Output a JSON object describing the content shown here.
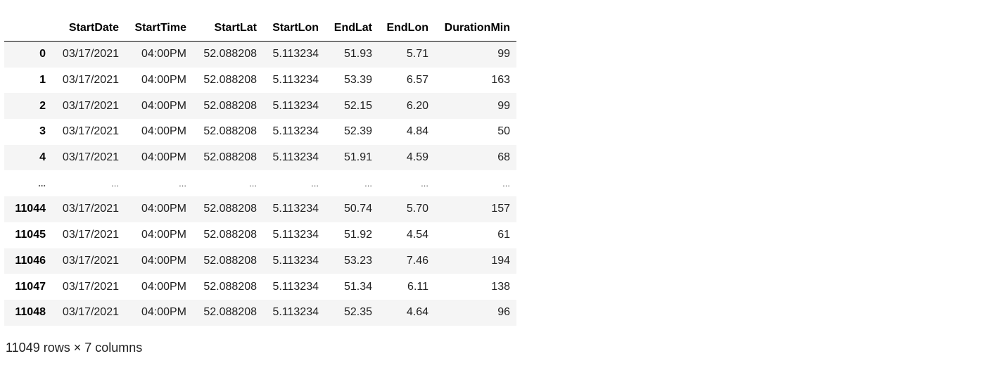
{
  "table": {
    "columns": [
      "",
      "StartDate",
      "StartTime",
      "StartLat",
      "StartLon",
      "EndLat",
      "EndLon",
      "DurationMin"
    ],
    "rows": [
      {
        "index": "0",
        "cells": [
          "03/17/2021",
          "04:00PM",
          "52.088208",
          "5.113234",
          "51.93",
          "5.71",
          "99"
        ]
      },
      {
        "index": "1",
        "cells": [
          "03/17/2021",
          "04:00PM",
          "52.088208",
          "5.113234",
          "53.39",
          "6.57",
          "163"
        ]
      },
      {
        "index": "2",
        "cells": [
          "03/17/2021",
          "04:00PM",
          "52.088208",
          "5.113234",
          "52.15",
          "6.20",
          "99"
        ]
      },
      {
        "index": "3",
        "cells": [
          "03/17/2021",
          "04:00PM",
          "52.088208",
          "5.113234",
          "52.39",
          "4.84",
          "50"
        ]
      },
      {
        "index": "4",
        "cells": [
          "03/17/2021",
          "04:00PM",
          "52.088208",
          "5.113234",
          "51.91",
          "4.59",
          "68"
        ]
      },
      {
        "index": "...",
        "cells": [
          "...",
          "...",
          "...",
          "...",
          "...",
          "...",
          "..."
        ]
      },
      {
        "index": "11044",
        "cells": [
          "03/17/2021",
          "04:00PM",
          "52.088208",
          "5.113234",
          "50.74",
          "5.70",
          "157"
        ]
      },
      {
        "index": "11045",
        "cells": [
          "03/17/2021",
          "04:00PM",
          "52.088208",
          "5.113234",
          "51.92",
          "4.54",
          "61"
        ]
      },
      {
        "index": "11046",
        "cells": [
          "03/17/2021",
          "04:00PM",
          "52.088208",
          "5.113234",
          "53.23",
          "7.46",
          "194"
        ]
      },
      {
        "index": "11047",
        "cells": [
          "03/17/2021",
          "04:00PM",
          "52.088208",
          "5.113234",
          "51.34",
          "6.11",
          "138"
        ]
      },
      {
        "index": "11048",
        "cells": [
          "03/17/2021",
          "04:00PM",
          "52.088208",
          "5.113234",
          "52.35",
          "4.64",
          "96"
        ]
      }
    ]
  },
  "footer": {
    "shape_text": "11049 rows × 7 columns"
  }
}
